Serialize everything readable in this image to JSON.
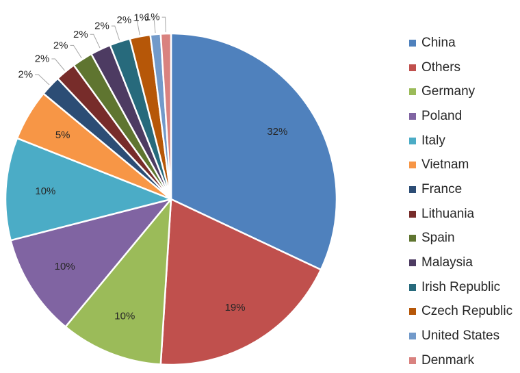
{
  "chart_data": {
    "type": "pie",
    "title": "",
    "start_angle_deg": 0,
    "direction": "clockwise",
    "legend_position": "right",
    "slices": [
      {
        "name": "China",
        "value": 32,
        "label": "32%",
        "color": "#4f81bd",
        "label_style": "inside"
      },
      {
        "name": "Others",
        "value": 19,
        "label": "19%",
        "color": "#c0504d",
        "label_style": "inside"
      },
      {
        "name": "Germany",
        "value": 10,
        "label": "10%",
        "color": "#9bbb59",
        "label_style": "inside"
      },
      {
        "name": "Poland",
        "value": 10,
        "label": "10%",
        "color": "#8064a2",
        "label_style": "inside"
      },
      {
        "name": "Italy",
        "value": 10,
        "label": "10%",
        "color": "#4bacc6",
        "label_style": "inside"
      },
      {
        "name": "Vietnam",
        "value": 5,
        "label": "5%",
        "color": "#f79646",
        "label_style": "inside"
      },
      {
        "name": "France",
        "value": 2,
        "label": "2%",
        "color": "#2c4d75",
        "label_style": "outside"
      },
      {
        "name": "Lithuania",
        "value": 2,
        "label": "2%",
        "color": "#772c2a",
        "label_style": "outside"
      },
      {
        "name": "Spain",
        "value": 2,
        "label": "2%",
        "color": "#5f7530",
        "label_style": "outside"
      },
      {
        "name": "Malaysia",
        "value": 2,
        "label": "2%",
        "color": "#4d3b62",
        "label_style": "outside"
      },
      {
        "name": "Irish Republic",
        "value": 2,
        "label": "2%",
        "color": "#276a7c",
        "label_style": "outside"
      },
      {
        "name": "Czech Republic",
        "value": 2,
        "label": "2%",
        "color": "#b65708",
        "label_style": "outside"
      },
      {
        "name": "United States",
        "value": 1,
        "label": "1%",
        "color": "#729aca",
        "label_style": "outside"
      },
      {
        "name": "Denmark",
        "value": 1,
        "label": "1%",
        "color": "#d9827f",
        "label_style": "outside"
      }
    ]
  }
}
